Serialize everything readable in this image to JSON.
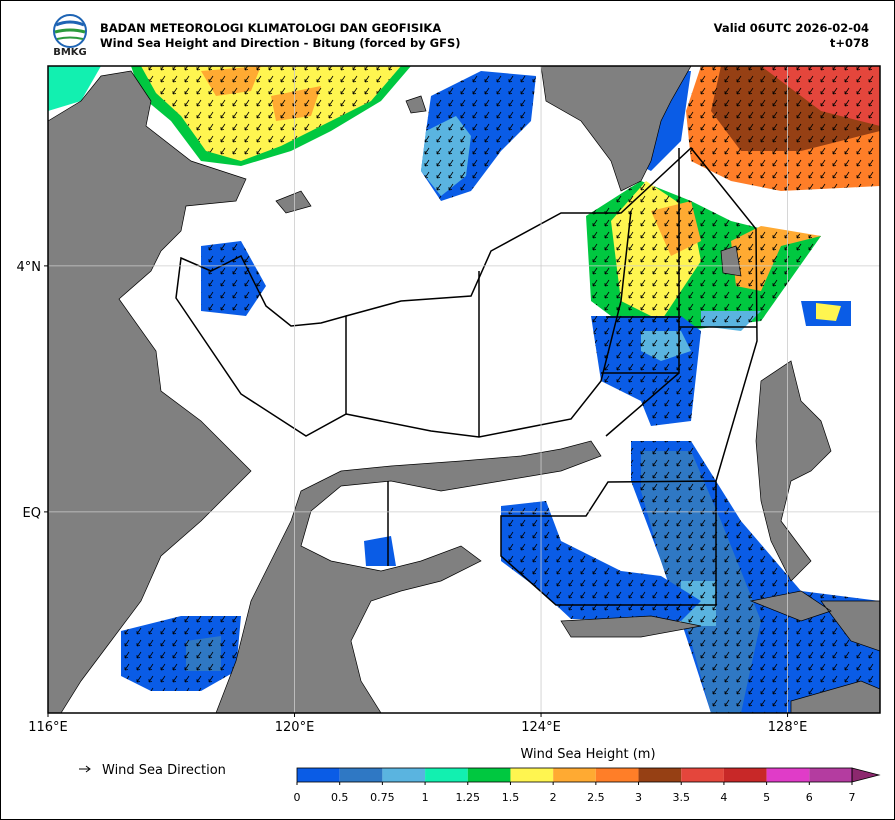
{
  "header": {
    "logo_text": "BMKG",
    "agency": "BADAN METEOROLOGI KLIMATOLOGI DAN GEOFISIKA",
    "title": "Wind Sea Height and Direction - Bitung (forced by GFS)",
    "valid": "Valid 06UTC 2026-02-04",
    "lead": "t+078"
  },
  "map": {
    "xlim": [
      116,
      129.5
    ],
    "ylim": [
      -3.27,
      7.25
    ],
    "xticks": [
      {
        "value": 116,
        "label": "116°E"
      },
      {
        "value": 120,
        "label": "120°E"
      },
      {
        "value": 124,
        "label": "124°E"
      },
      {
        "value": 128,
        "label": "128°E"
      }
    ],
    "yticks": [
      {
        "value": 0,
        "label": "EQ"
      },
      {
        "value": 4,
        "label": "4°N"
      }
    ],
    "grid": true
  },
  "legend": {
    "arrow_label": "Wind Sea Direction"
  },
  "colorbar": {
    "title": "Wind Sea Height (m)",
    "bins": [
      0,
      0.5,
      0.75,
      1,
      1.25,
      1.5,
      2,
      2.5,
      3,
      3.5,
      4,
      5,
      6,
      7
    ],
    "colors": [
      "#0a5ce6",
      "#2f78c4",
      "#5ab4e0",
      "#12f0b0",
      "#00c840",
      "#fff550",
      "#ffaa32",
      "#ff7e28",
      "#964014",
      "#e4463c",
      "#c82828",
      "#e03cc8",
      "#b43ca0",
      "#8c286e"
    ]
  }
}
